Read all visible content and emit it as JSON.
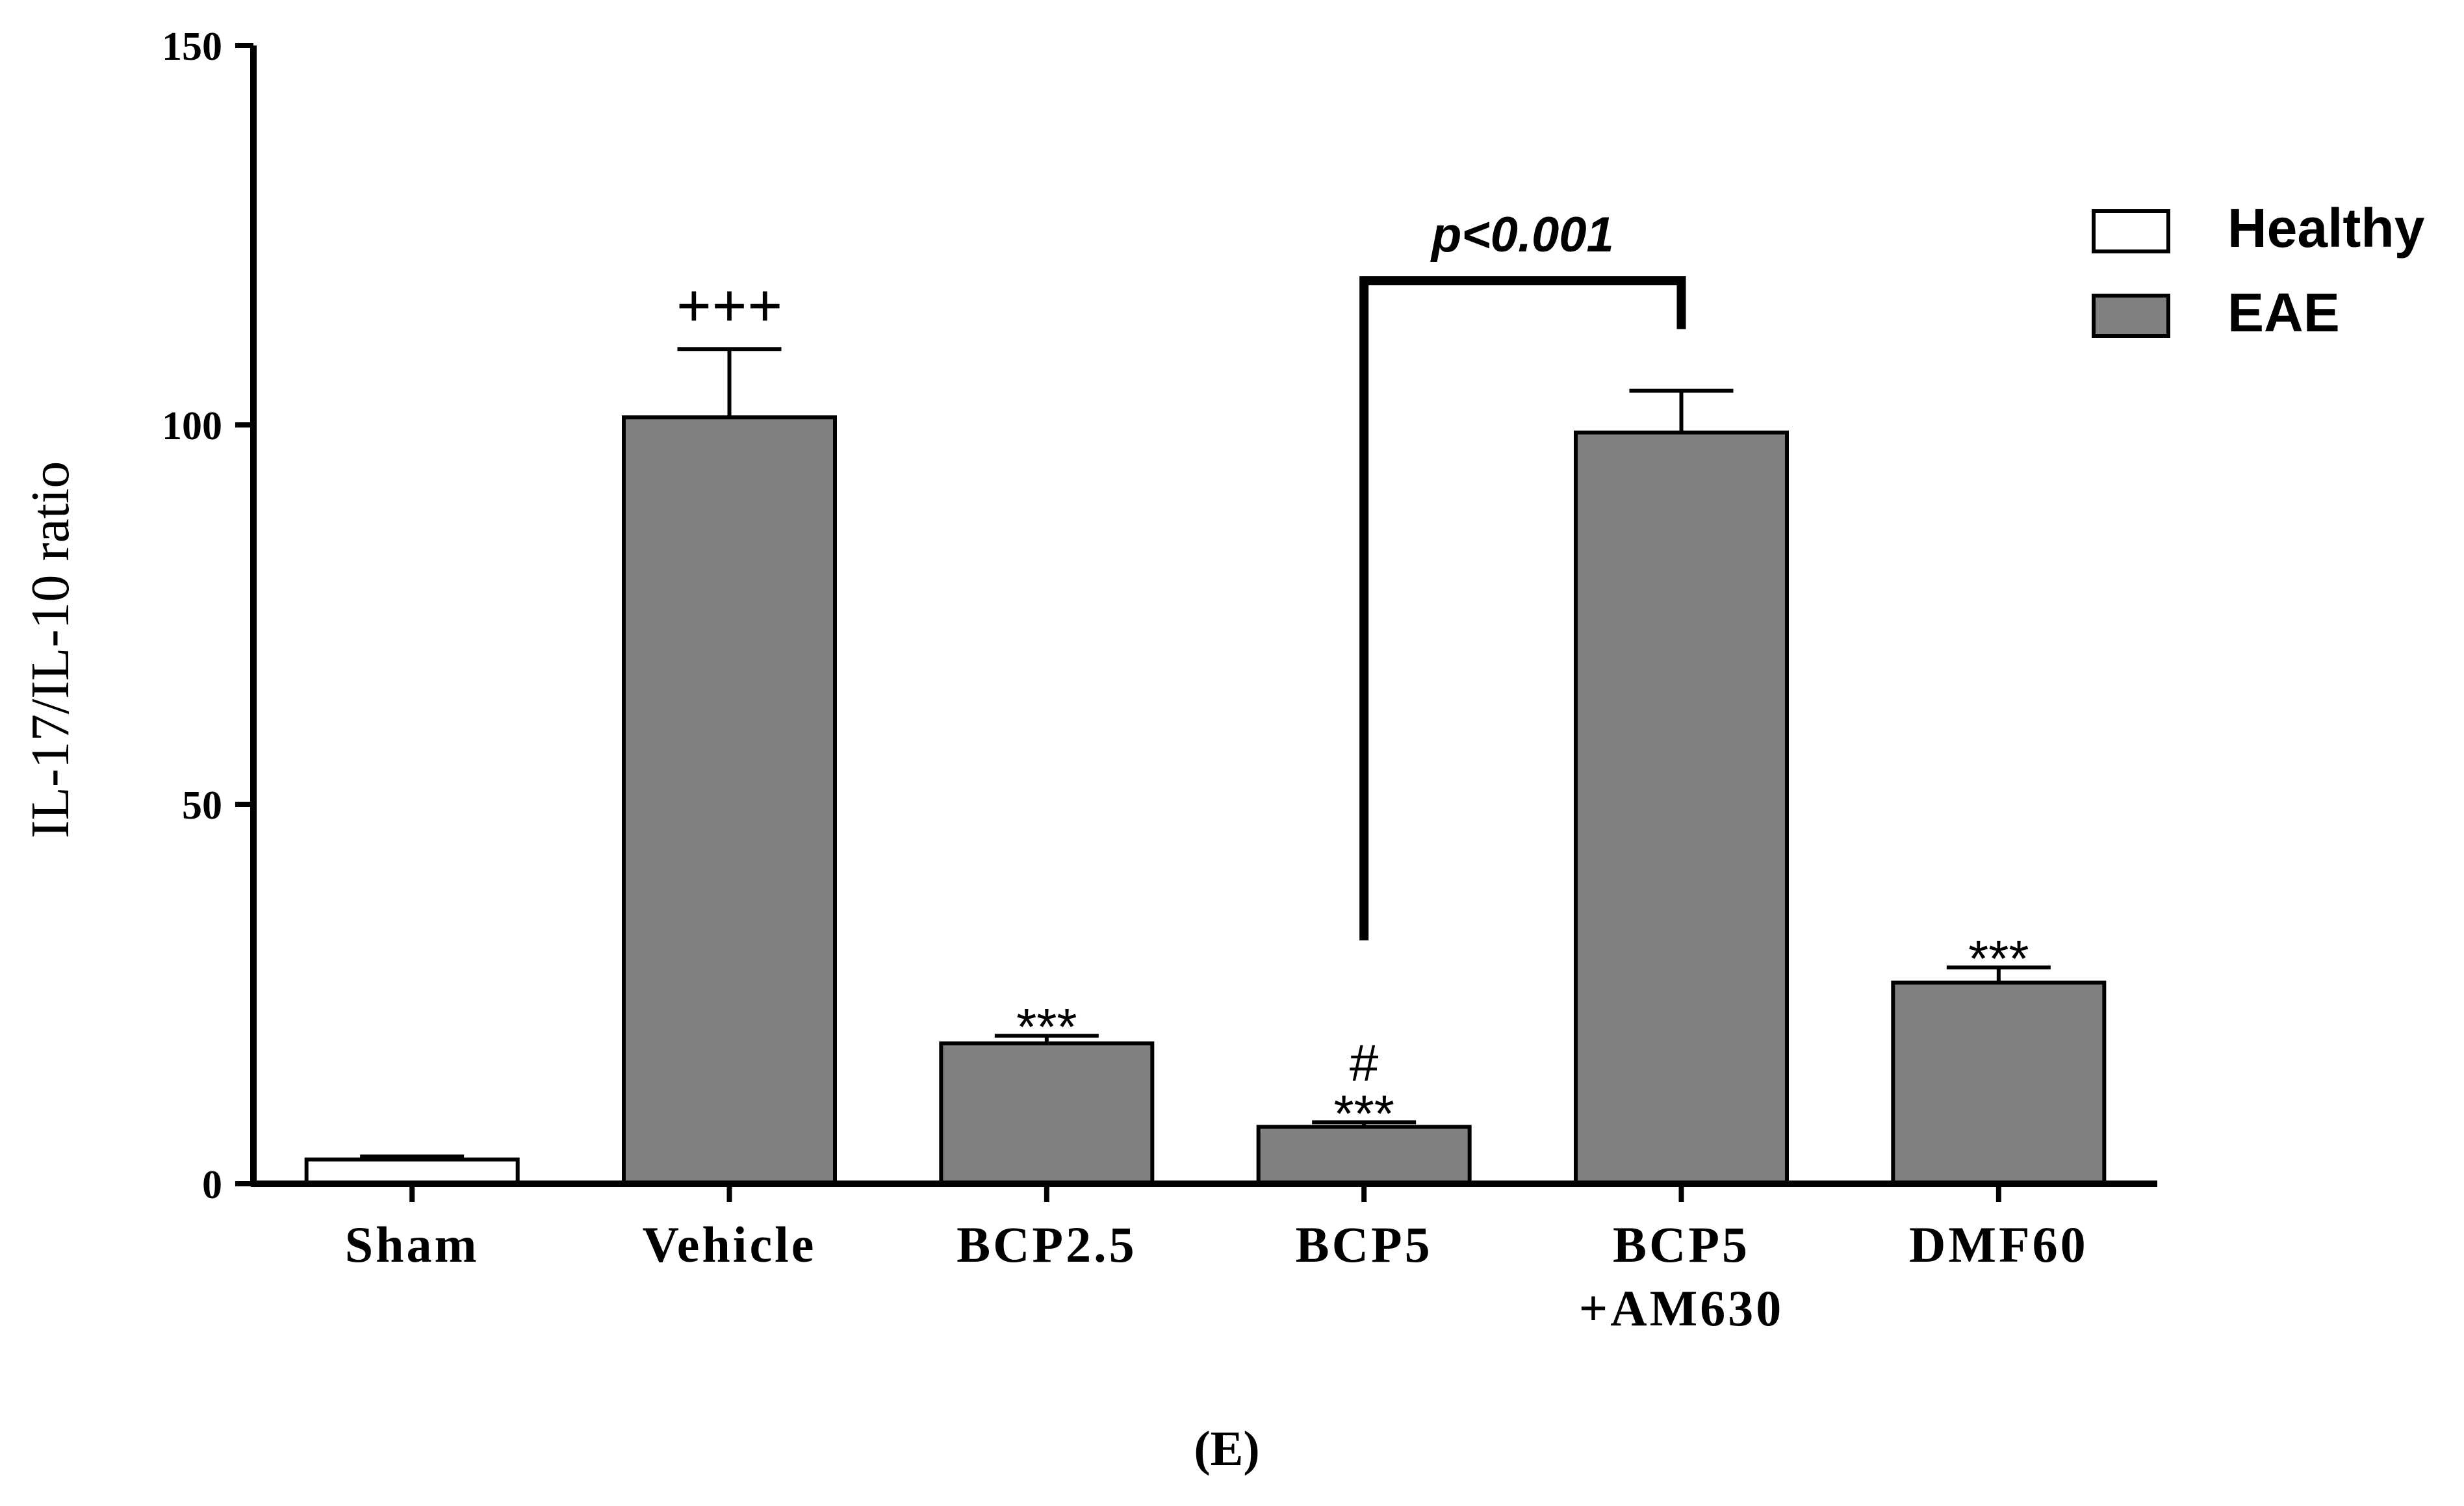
{
  "chart_data": {
    "type": "bar",
    "ylabel": "IL-17/IL-10 ratio",
    "ylim": [
      0,
      150
    ],
    "yticks": [
      0,
      50,
      100,
      150
    ],
    "categories": [
      [
        "Sham"
      ],
      [
        "Vehicle"
      ],
      [
        "BCP2.5"
      ],
      [
        "BCP5"
      ],
      [
        "BCP5",
        "+AM630"
      ],
      [
        "DMF60"
      ]
    ],
    "values": [
      3.2,
      101,
      18.5,
      7.5,
      99,
      26.5
    ],
    "errors": [
      0.4,
      9,
      1.0,
      0.6,
      5.5,
      2.0
    ],
    "groups": [
      "Healthy",
      "EAE",
      "EAE",
      "EAE",
      "EAE",
      "EAE"
    ],
    "annotations": [
      [],
      [
        "+++"
      ],
      [
        "***"
      ],
      [
        "#",
        "***"
      ],
      [],
      [
        "***"
      ]
    ],
    "comparison": {
      "from": 3,
      "to": 4,
      "label": "p<0.001",
      "level": 119
    },
    "legend": [
      {
        "name": "Healthy",
        "color": "#ffffff"
      },
      {
        "name": "EAE",
        "color": "#808080"
      }
    ],
    "legend_position": "top-right",
    "panel_label": "(E)"
  },
  "colors": {
    "healthy": "#ffffff",
    "eae": "#808080",
    "stroke": "#000000"
  }
}
